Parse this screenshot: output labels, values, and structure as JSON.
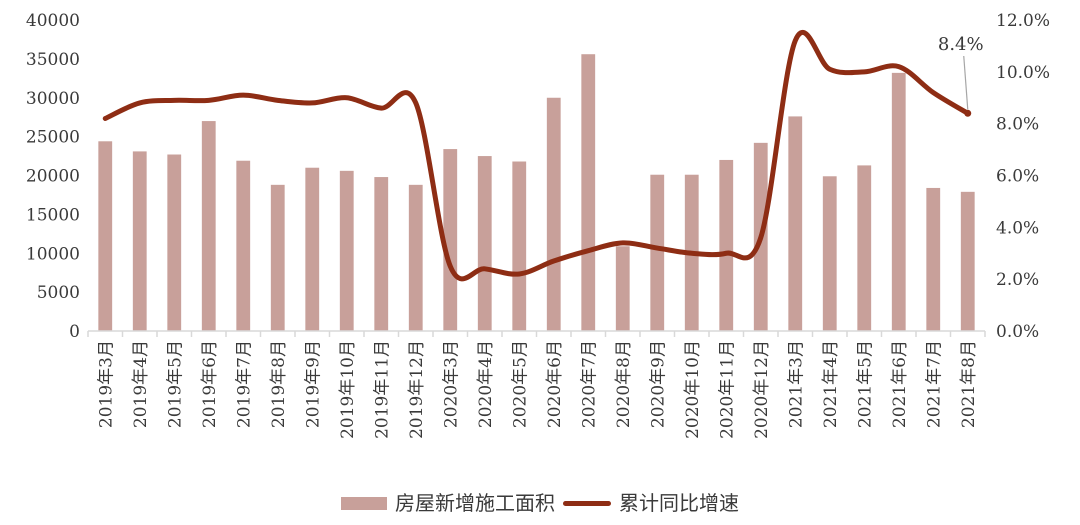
{
  "chart_data": {
    "type": "bar+line combo",
    "title": "",
    "grid": false,
    "legend_position": "bottom",
    "categories": [
      "2019年3月",
      "2019年4月",
      "2019年5月",
      "2019年6月",
      "2019年7月",
      "2019年8月",
      "2019年9月",
      "2019年10月",
      "2019年11月",
      "2019年12月",
      "2020年3月",
      "2020年4月",
      "2020年5月",
      "2020年6月",
      "2020年7月",
      "2020年8月",
      "2020年9月",
      "2020年10月",
      "2020年11月",
      "2020年12月",
      "2021年3月",
      "2021年4月",
      "2021年5月",
      "2021年6月",
      "2021年7月",
      "2021年8月"
    ],
    "series": [
      {
        "name": "房屋新增施工面积",
        "type": "bar",
        "axis": "left",
        "color": "#c8a09a",
        "values": [
          24400,
          23100,
          22700,
          27000,
          21900,
          18800,
          21000,
          20600,
          19800,
          18800,
          23400,
          22500,
          21800,
          30000,
          35600,
          10900,
          20100,
          20100,
          22000,
          24200,
          27600,
          19900,
          21300,
          33200,
          18400,
          17900
        ]
      },
      {
        "name": "累计同比增速",
        "type": "line",
        "axis": "right",
        "color": "#8e2d14",
        "values": [
          8.2,
          8.8,
          8.9,
          8.9,
          9.1,
          8.9,
          8.8,
          9.0,
          8.6,
          8.8,
          2.5,
          2.4,
          2.2,
          2.7,
          3.1,
          3.4,
          3.2,
          3.0,
          3.0,
          3.6,
          11.2,
          10.1,
          10.0,
          10.2,
          9.2,
          8.4
        ]
      }
    ],
    "y_axis_left": {
      "min": 0,
      "max": 40000,
      "tick_labels": [
        "0",
        "5000",
        "10000",
        "15000",
        "20000",
        "25000",
        "30000",
        "35000",
        "40000"
      ]
    },
    "y_axis_right": {
      "min": 0,
      "max": 12,
      "tick_labels": [
        "0.0%",
        "2.0%",
        "4.0%",
        "6.0%",
        "8.0%",
        "10.0%",
        "12.0%"
      ]
    },
    "annotation": {
      "label": "8.4%",
      "target_index": 25
    }
  },
  "colors": {
    "background": "#ffffff",
    "axis": "#d9d9d9",
    "text": "#3a3a3a",
    "annotation_text": "#3a3a3a",
    "leader_line": "#a6a6a6"
  }
}
